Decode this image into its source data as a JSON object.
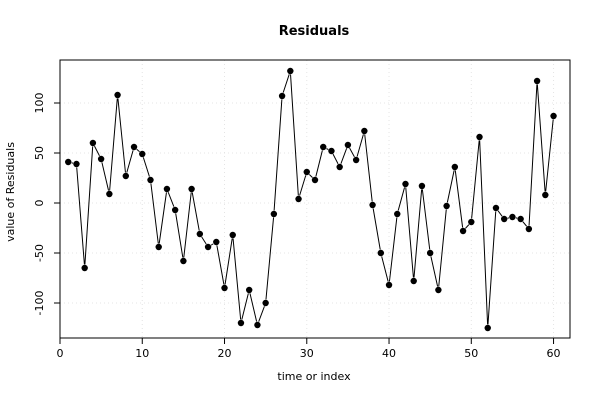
{
  "chart_data": {
    "type": "line",
    "title": "Residuals",
    "xlabel": "time or index",
    "ylabel": "value of Residuals",
    "xlim": [
      0,
      62
    ],
    "ylim": [
      -135,
      143
    ],
    "x_ticks": [
      0,
      10,
      20,
      30,
      40,
      50,
      60
    ],
    "y_ticks": [
      -100,
      -50,
      0,
      50,
      100
    ],
    "grid": true,
    "series": [
      {
        "x": [
          1,
          2,
          3,
          4,
          5,
          6,
          7,
          8,
          9,
          10,
          11,
          12,
          13,
          14,
          15,
          16,
          17,
          18,
          19,
          20,
          21,
          22,
          23,
          24,
          25,
          26,
          27,
          28,
          29,
          30,
          31,
          32,
          33,
          34,
          35,
          36,
          37,
          38,
          39,
          40,
          41,
          42,
          43,
          44,
          45,
          46,
          47,
          48,
          49,
          50,
          51,
          52,
          53,
          54,
          55,
          56,
          57,
          58,
          59,
          60
        ],
        "values": [
          41,
          39,
          -65,
          60,
          44,
          9,
          108,
          27,
          56,
          49,
          23,
          -44,
          14,
          -7,
          -58,
          14,
          -31,
          -44,
          -39,
          -85,
          -32,
          -120,
          -87,
          -122,
          -100,
          -11,
          107,
          132,
          4,
          31,
          23,
          56,
          52,
          36,
          58,
          43,
          72,
          -2,
          -50,
          -82,
          -11,
          19,
          -78,
          17,
          -50,
          -87,
          -3,
          36,
          -28,
          -19,
          66,
          -125,
          -5,
          -16,
          -14,
          -16,
          -26,
          122,
          8,
          87
        ]
      }
    ]
  }
}
